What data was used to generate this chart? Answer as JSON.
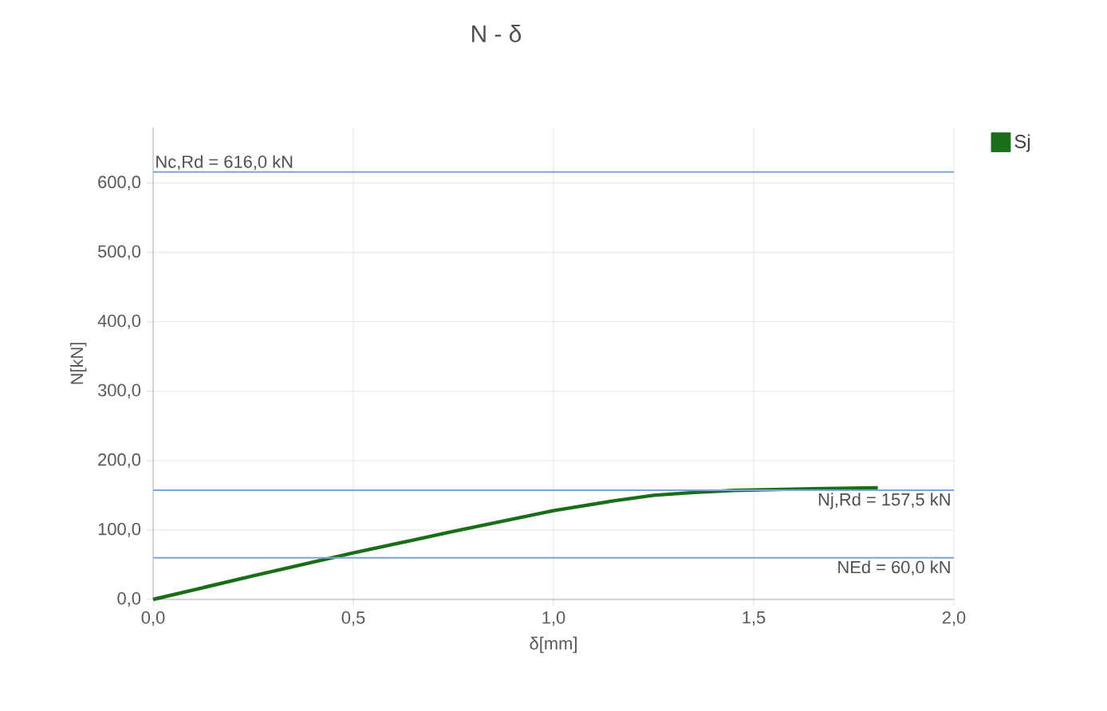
{
  "chart_data": {
    "type": "line",
    "title": "N - δ",
    "xlabel": "δ[mm]",
    "ylabel": "N[kN]",
    "x": [
      0,
      0.25,
      0.5,
      0.75,
      1.0,
      1.15,
      1.25,
      1.35,
      1.45,
      1.6,
      1.81
    ],
    "series": [
      {
        "name": "Sj",
        "color": "#1a6e1a",
        "values": [
          0,
          34,
          67,
          98,
          128,
          142,
          150,
          154,
          157,
          159,
          161
        ]
      }
    ],
    "xlim": [
      0,
      2.0
    ],
    "ylim": [
      0,
      680
    ],
    "xticks": [
      {
        "value": 0,
        "label": "0,0"
      },
      {
        "value": 0.5,
        "label": "0,5"
      },
      {
        "value": 1.0,
        "label": "1,0"
      },
      {
        "value": 1.5,
        "label": "1,5"
      },
      {
        "value": 2.0,
        "label": "2,0"
      }
    ],
    "yticks": [
      {
        "value": 0,
        "label": "0,0"
      },
      {
        "value": 100,
        "label": "100,0"
      },
      {
        "value": 200,
        "label": "200,0"
      },
      {
        "value": 300,
        "label": "300,0"
      },
      {
        "value": 400,
        "label": "400,0"
      },
      {
        "value": 500,
        "label": "500,0"
      },
      {
        "value": 600,
        "label": "600,0"
      }
    ],
    "ref_lines": [
      {
        "axis": "y",
        "value": 616,
        "label": "Nc,Rd = 616,0 kN",
        "color": "#7ba7d4"
      },
      {
        "axis": "y",
        "value": 157.5,
        "label": "Nj,Rd = 157,5 kN",
        "color": "#7ba7d4"
      },
      {
        "axis": "y",
        "value": 60,
        "label": "NEd = 60,0 kN",
        "color": "#7ba7d4"
      }
    ],
    "grid": true,
    "legend": "top right",
    "marker": "none",
    "line_style": "solid"
  }
}
